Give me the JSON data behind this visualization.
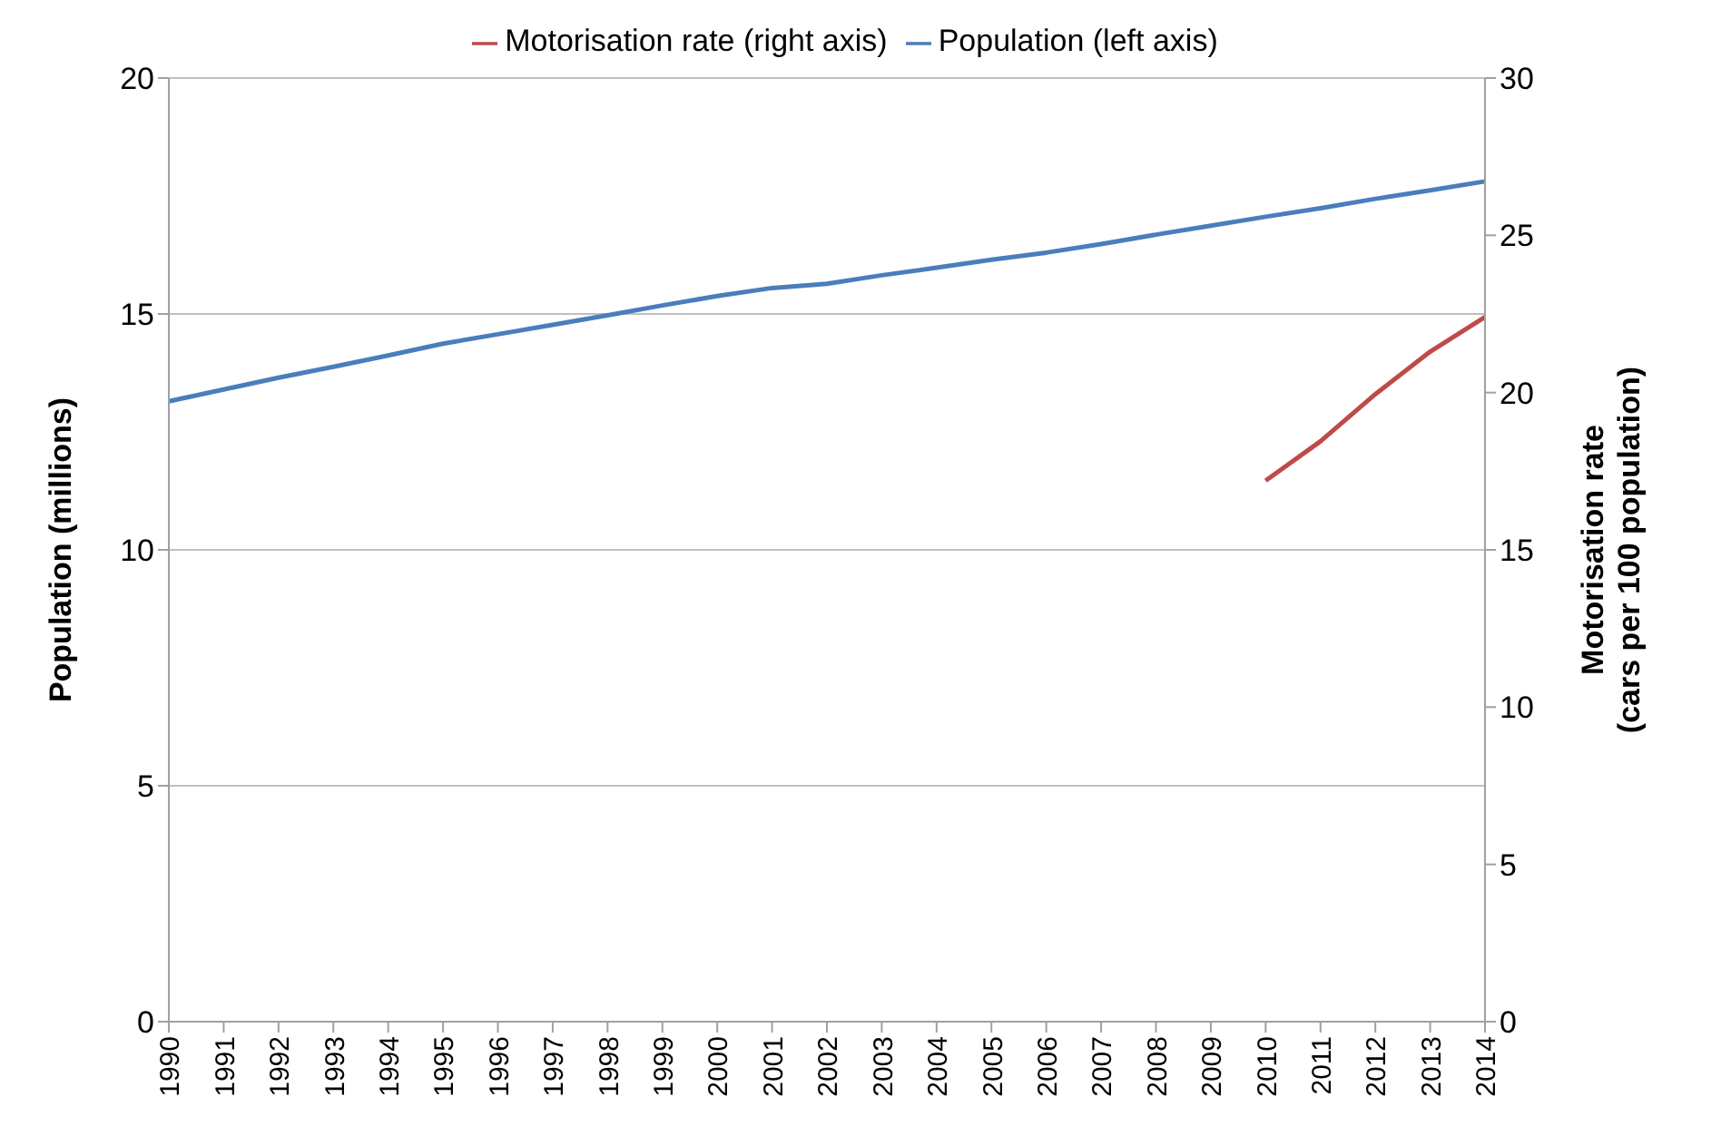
{
  "chart_data": {
    "type": "line",
    "ylabel": "Population (millions)",
    "y2label": "Motorisation rate\n(cars per 100 population)",
    "categories": [
      "1990",
      "1991",
      "1992",
      "1993",
      "1994",
      "1995",
      "1996",
      "1997",
      "1998",
      "1999",
      "2000",
      "2001",
      "2002",
      "2003",
      "2004",
      "2005",
      "2006",
      "2007",
      "2008",
      "2009",
      "2010",
      "2011",
      "2012",
      "2013",
      "2014"
    ],
    "series": [
      {
        "name": "Population (left axis)",
        "color": "#4a7ebb",
        "values": [
          13.15,
          13.4,
          13.65,
          13.88,
          14.12,
          14.37,
          14.57,
          14.77,
          14.97,
          15.18,
          15.38,
          15.55,
          15.64,
          15.82,
          15.98,
          16.15,
          16.3,
          16.48,
          16.68,
          16.87,
          17.06,
          17.24,
          17.44,
          17.62,
          17.81
        ]
      },
      {
        "name": "Motorisation rate (right axis)",
        "color": "#be4b48",
        "axis": "y2",
        "values": [
          null,
          null,
          null,
          null,
          null,
          null,
          null,
          null,
          null,
          null,
          null,
          null,
          null,
          null,
          null,
          null,
          null,
          null,
          null,
          null,
          17.2,
          18.45,
          19.95,
          21.3,
          22.4
        ]
      }
    ],
    "ylim": [
      0,
      20
    ],
    "yticks": [
      0,
      5,
      10,
      15,
      20
    ],
    "y2lim": [
      0,
      30
    ],
    "y2ticks": [
      0,
      5,
      10,
      15,
      20,
      25,
      30
    ],
    "grid": "y",
    "legend": "top",
    "marker": "none",
    "line_style": "solid"
  }
}
